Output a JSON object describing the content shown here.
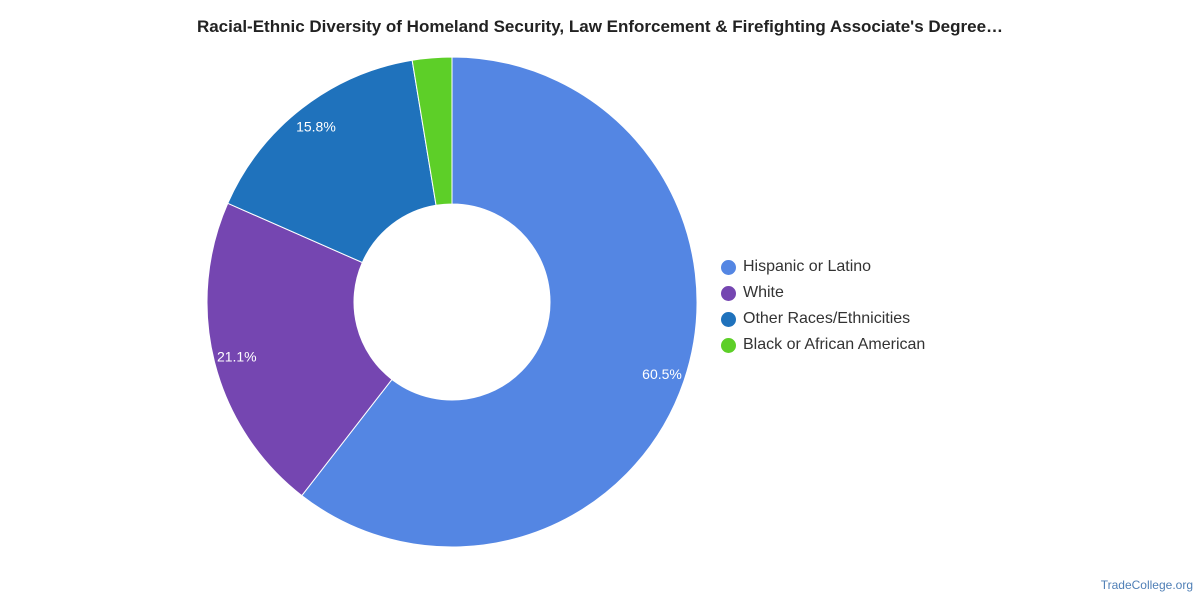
{
  "chart_data": {
    "type": "pie",
    "title": "Racial-Ethnic Diversity of Homeland Security, Law Enforcement & Firefighting Associate's Degree…",
    "donut": true,
    "legend_position": "right",
    "categories": [
      "Hispanic or Latino",
      "White",
      "Other Races/Ethnicities",
      "Black or African American"
    ],
    "values": [
      60.5,
      21.1,
      15.8,
      2.6
    ],
    "value_labels": [
      "60.5%",
      "21.1%",
      "15.8%",
      ""
    ],
    "colors": [
      "#5486e3",
      "#7546b1",
      "#1f72bc",
      "#5dcf28"
    ]
  },
  "source": "TradeCollege.org"
}
